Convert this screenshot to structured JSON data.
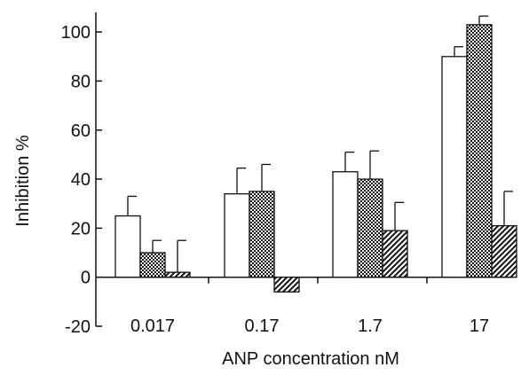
{
  "chart_data": {
    "type": "bar",
    "title": "",
    "xlabel": "ANP concentration  nM",
    "ylabel": "Inhibition  %",
    "categories": [
      "0.017",
      "0.17",
      "1.7",
      "17"
    ],
    "ylim": [
      -20,
      108
    ],
    "yticks": [
      -20,
      0,
      20,
      40,
      60,
      80,
      100
    ],
    "grid": false,
    "legend": "none",
    "series": [
      {
        "fill": "open",
        "values": [
          25,
          34,
          43,
          90
        ],
        "errors": [
          8,
          10.5,
          8,
          4
        ]
      },
      {
        "fill": "crosshatch",
        "values": [
          10,
          35,
          40,
          103
        ],
        "errors": [
          5,
          11,
          11.5,
          3.5
        ]
      },
      {
        "fill": "diagonal",
        "values": [
          2,
          -6,
          19,
          21
        ],
        "errors": [
          13,
          0,
          11.5,
          14
        ]
      }
    ]
  },
  "colors": {
    "ink": "#111111",
    "background": "#ffffff"
  }
}
